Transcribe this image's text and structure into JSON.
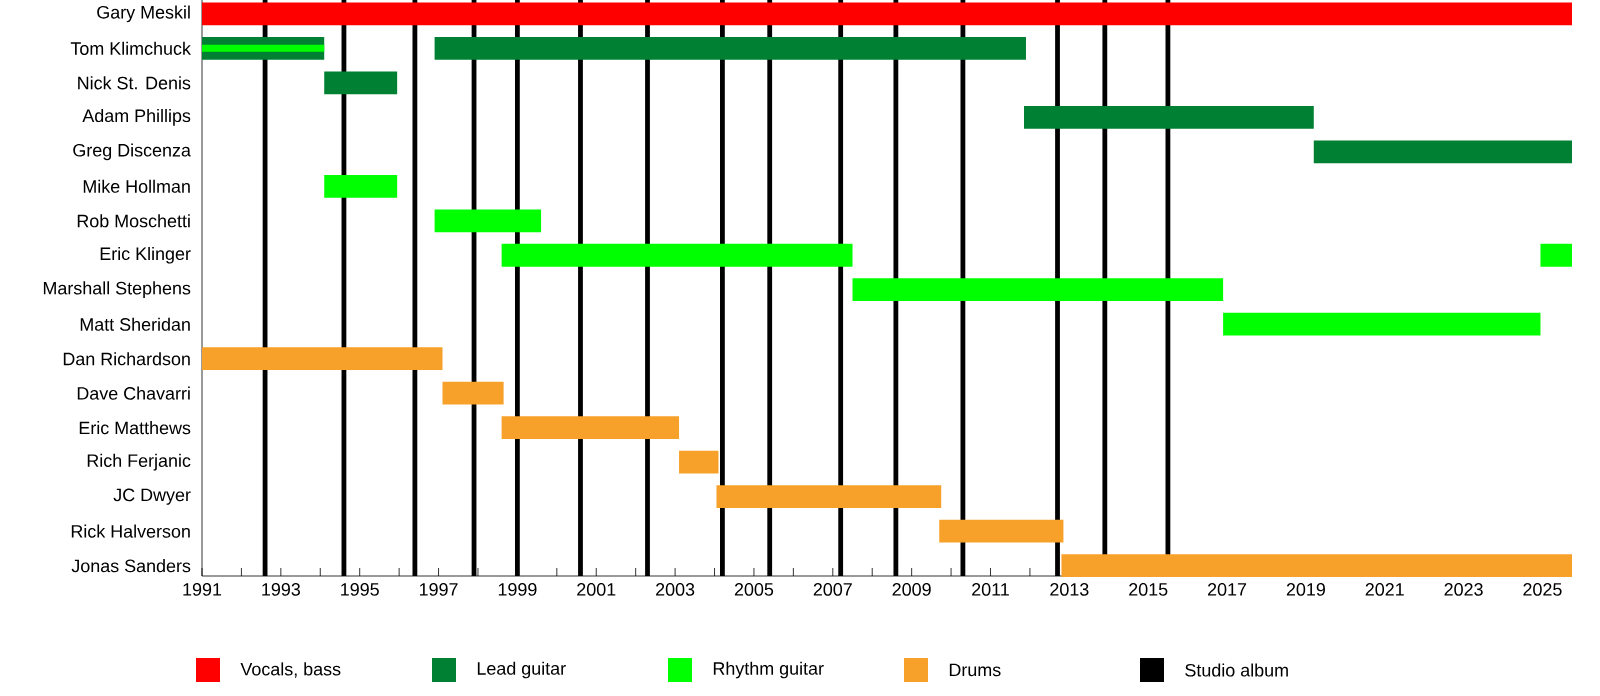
{
  "chart_data": {
    "type": "bar",
    "orientation": "horizontal",
    "legend": "bottom",
    "categories": [
      "Gary Meskil",
      "Tom Klimchuck",
      "Nick St. Denis",
      "Adam Phillips",
      "Greg Discenza",
      "Mike Hollman",
      "Rob Moschetti",
      "Eric Klinger",
      "Marshall Stephens",
      "Matt Sheridan",
      "Dan Richardson",
      "Dave Chavarri",
      "Eric Matthews",
      "Rich Ferjanic",
      "JC Dwyer",
      "Rick Halverson",
      "Jonas Sanders"
    ],
    "series": [
      {
        "name": "Vocals, bass",
        "color": "#ff0000",
        "base": [
          1991,
          null,
          null,
          null,
          null,
          null,
          null,
          null,
          null,
          null,
          null,
          null,
          null,
          null,
          null,
          null,
          null
        ],
        "values": [
          34.75,
          null,
          null,
          null,
          null,
          null,
          null,
          null,
          null,
          null,
          null,
          null,
          null,
          null,
          null,
          null,
          null
        ]
      },
      {
        "name": "Lead guitar",
        "color": "#008033",
        "base": [
          null,
          1991,
          1994.1,
          2011.85,
          2019.2,
          null,
          null,
          null,
          null,
          null,
          null,
          null,
          null,
          null,
          null,
          null,
          null
        ],
        "values": [
          null,
          3.1,
          1.85,
          7.35,
          6.55,
          null,
          null,
          null,
          null,
          null,
          null,
          null,
          null,
          null,
          null,
          null,
          null
        ]
      },
      {
        "color": "#008033",
        "base": [
          null,
          1996.9,
          null,
          null,
          null,
          null,
          null,
          null,
          null,
          null,
          null,
          null,
          null,
          null,
          null,
          null,
          null
        ],
        "values": [
          null,
          15.0,
          null,
          null,
          null,
          null,
          null,
          null,
          null,
          null,
          null,
          null,
          null,
          null,
          null,
          null,
          null
        ]
      },
      {
        "name": "Rhythm guitar",
        "color": "#00ff00",
        "base": [
          null,
          1991,
          null,
          null,
          null,
          1994.1,
          1996.9,
          1998.6,
          2007.5,
          2016.9,
          null,
          null,
          null,
          null,
          null,
          null,
          null
        ],
        "values": [
          null,
          3.1,
          null,
          null,
          null,
          1.85,
          2.7,
          8.9,
          9.4,
          8.05,
          null,
          null,
          null,
          null,
          null,
          null,
          null
        ]
      },
      {
        "color": "#00ff00",
        "base": [
          null,
          null,
          null,
          null,
          null,
          null,
          null,
          2024.95,
          null,
          null,
          null,
          null,
          null,
          null,
          null,
          null,
          null
        ],
        "values": [
          null,
          null,
          null,
          null,
          null,
          null,
          null,
          0.8,
          null,
          null,
          null,
          null,
          null,
          null,
          null,
          null,
          null
        ]
      },
      {
        "name": "Drums",
        "color": "#f7a12b",
        "base": [
          null,
          null,
          null,
          null,
          null,
          null,
          null,
          null,
          null,
          null,
          1991,
          1997.1,
          1998.6,
          2003.1,
          2004.05,
          2009.7,
          2012.8
        ],
        "values": [
          null,
          null,
          null,
          null,
          null,
          null,
          null,
          null,
          null,
          null,
          6.1,
          1.55,
          4.5,
          1.0,
          5.7,
          3.15,
          12.95
        ]
      }
    ],
    "ref_lines": [
      {
        "axis": "x",
        "value": 1992.6,
        "label": "Studio album",
        "color": "#000000"
      },
      {
        "axis": "x",
        "value": 1994.6,
        "color": "#000000"
      },
      {
        "axis": "x",
        "value": 1996.4,
        "color": "#000000"
      },
      {
        "axis": "x",
        "value": 1997.9,
        "color": "#000000"
      },
      {
        "axis": "x",
        "value": 1999.0,
        "color": "#000000"
      },
      {
        "axis": "x",
        "value": 2000.6,
        "color": "#000000"
      },
      {
        "axis": "x",
        "value": 2002.3,
        "color": "#000000"
      },
      {
        "axis": "x",
        "value": 2004.2,
        "color": "#000000"
      },
      {
        "axis": "x",
        "value": 2005.4,
        "color": "#000000"
      },
      {
        "axis": "x",
        "value": 2007.2,
        "color": "#000000"
      },
      {
        "axis": "x",
        "value": 2008.6,
        "color": "#000000"
      },
      {
        "axis": "x",
        "value": 2010.3,
        "color": "#000000"
      },
      {
        "axis": "x",
        "value": 2012.7,
        "color": "#000000"
      },
      {
        "axis": "x",
        "value": 2013.9,
        "color": "#000000"
      },
      {
        "axis": "x",
        "value": 2015.5,
        "color": "#000000"
      }
    ],
    "xlim": [
      1991,
      2025.75
    ],
    "xticks": [
      1991,
      {
        "value": 1992,
        "label": null
      },
      1993,
      {
        "value": 1994,
        "label": null
      },
      1995,
      {
        "value": 1996,
        "label": null
      },
      1997,
      {
        "value": 1998,
        "label": null
      },
      1999,
      {
        "value": 2000,
        "label": null
      },
      2001,
      {
        "value": 2002,
        "label": null
      },
      2003,
      {
        "value": 2004,
        "label": null
      },
      2005,
      {
        "value": 2006,
        "label": null
      },
      2007,
      {
        "value": 2008,
        "label": null
      },
      2009,
      {
        "value": 2010,
        "label": null
      },
      2011,
      {
        "value": 2012,
        "label": null
      },
      2013,
      {
        "value": 2014,
        "label": null
      },
      2015,
      {
        "value": 2016,
        "label": null
      },
      2017,
      {
        "value": 2018,
        "label": null
      },
      2019,
      {
        "value": 2020,
        "label": null
      },
      2021,
      {
        "value": 2022,
        "label": null
      },
      2023,
      {
        "value": 2024,
        "label": null
      },
      2025
    ]
  }
}
